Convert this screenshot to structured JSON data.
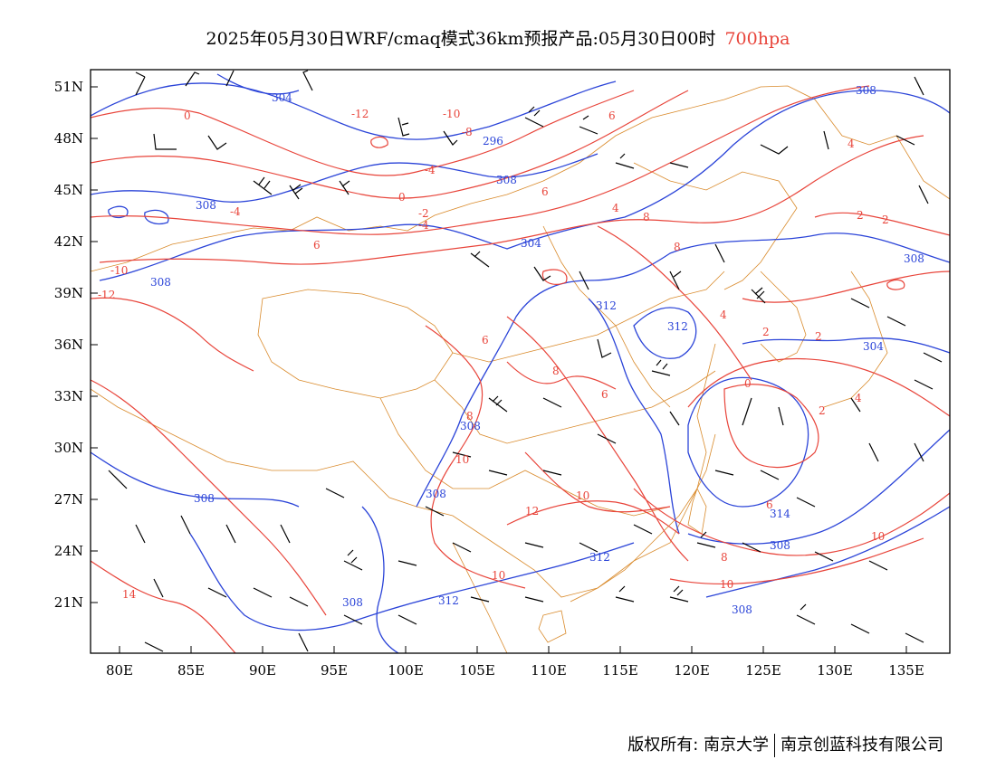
{
  "header": {
    "title": "2025年05月30日WRF/cmaq模式36km预报产品:05月30日00时",
    "level": "700hpa"
  },
  "map": {
    "lon_ticks": [
      "80E",
      "85E",
      "90E",
      "95E",
      "100E",
      "105E",
      "110E",
      "115E",
      "120E",
      "125E",
      "130E",
      "135E"
    ],
    "lat_ticks": [
      "51N",
      "48N",
      "45N",
      "42N",
      "39N",
      "36N",
      "33N",
      "30N",
      "27N",
      "24N",
      "21N"
    ],
    "height_labels": [
      "304",
      "296",
      "308",
      "308",
      "308",
      "304",
      "308",
      "312",
      "312",
      "308",
      "308",
      "308",
      "308",
      "312",
      "312",
      "314",
      "308",
      "308",
      "304",
      "308"
    ],
    "temperature_labels": [
      "0",
      "-12",
      "-10",
      "-8",
      "-4",
      "0",
      "-2",
      "-4",
      "-4",
      "4",
      "6",
      "6",
      "-10",
      "-12",
      "8",
      "8",
      "6",
      "4",
      "2",
      "2",
      "4",
      "2",
      "6",
      "8",
      "6",
      "10",
      "10",
      "12",
      "14",
      "10",
      "10",
      "8",
      "6",
      "10",
      "8",
      "0",
      "2",
      "4",
      "2"
    ],
    "colors": {
      "height_contour": "#2b44d8",
      "temperature_contour": "#e8443a",
      "boundary": "#d98a2b",
      "wind_barb": "#000000"
    }
  },
  "footer": {
    "copyright_left": "版权所有: 南京大学",
    "copyright_right": "南京创蓝科技有限公司"
  }
}
